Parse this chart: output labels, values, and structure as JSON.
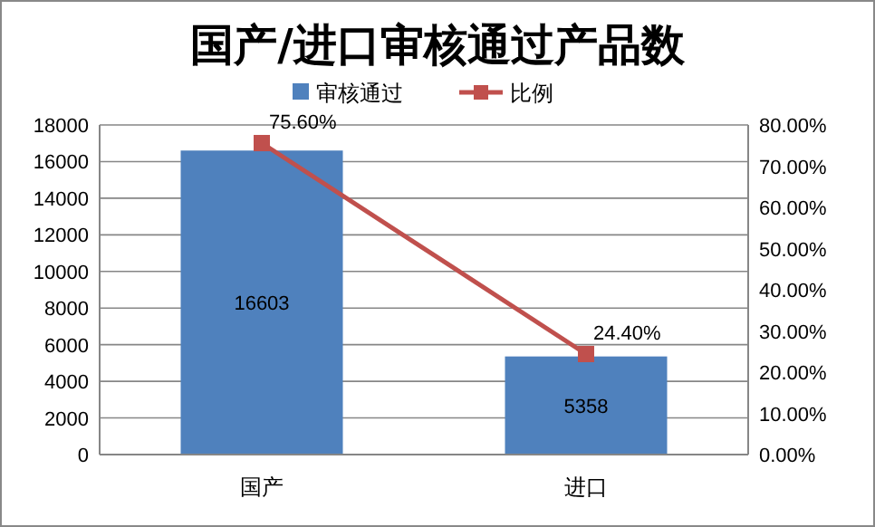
{
  "chart_data": {
    "type": "bar",
    "title": "国产/进口审核通过产品数",
    "categories": [
      "国产",
      "进口"
    ],
    "series": [
      {
        "name": "审核通过",
        "color": "#4f81bd",
        "values": [
          16603,
          5358
        ],
        "value_labels": [
          "16603",
          "5358"
        ]
      },
      {
        "name": "比例",
        "type": "line",
        "axis": "y2",
        "color": "#c0504d",
        "values": [
          75.6,
          24.4
        ],
        "value_labels": [
          "75.60%",
          "24.40%"
        ],
        "marker": "square"
      }
    ],
    "ylim": [
      0,
      18000
    ],
    "yticks": [
      0,
      2000,
      4000,
      6000,
      8000,
      10000,
      12000,
      14000,
      16000,
      18000
    ],
    "y2lim": [
      0,
      80
    ],
    "y2ticks": [
      {
        "value": 0,
        "label": "0.00%"
      },
      {
        "value": 10,
        "label": "10.00%"
      },
      {
        "value": 20,
        "label": "20.00%"
      },
      {
        "value": 30,
        "label": "30.00%"
      },
      {
        "value": 40,
        "label": "40.00%"
      },
      {
        "value": 50,
        "label": "50.00%"
      },
      {
        "value": 60,
        "label": "60.00%"
      },
      {
        "value": 70,
        "label": "70.00%"
      },
      {
        "value": 80,
        "label": "80.00%"
      }
    ],
    "grid": "y",
    "legend": "top"
  }
}
